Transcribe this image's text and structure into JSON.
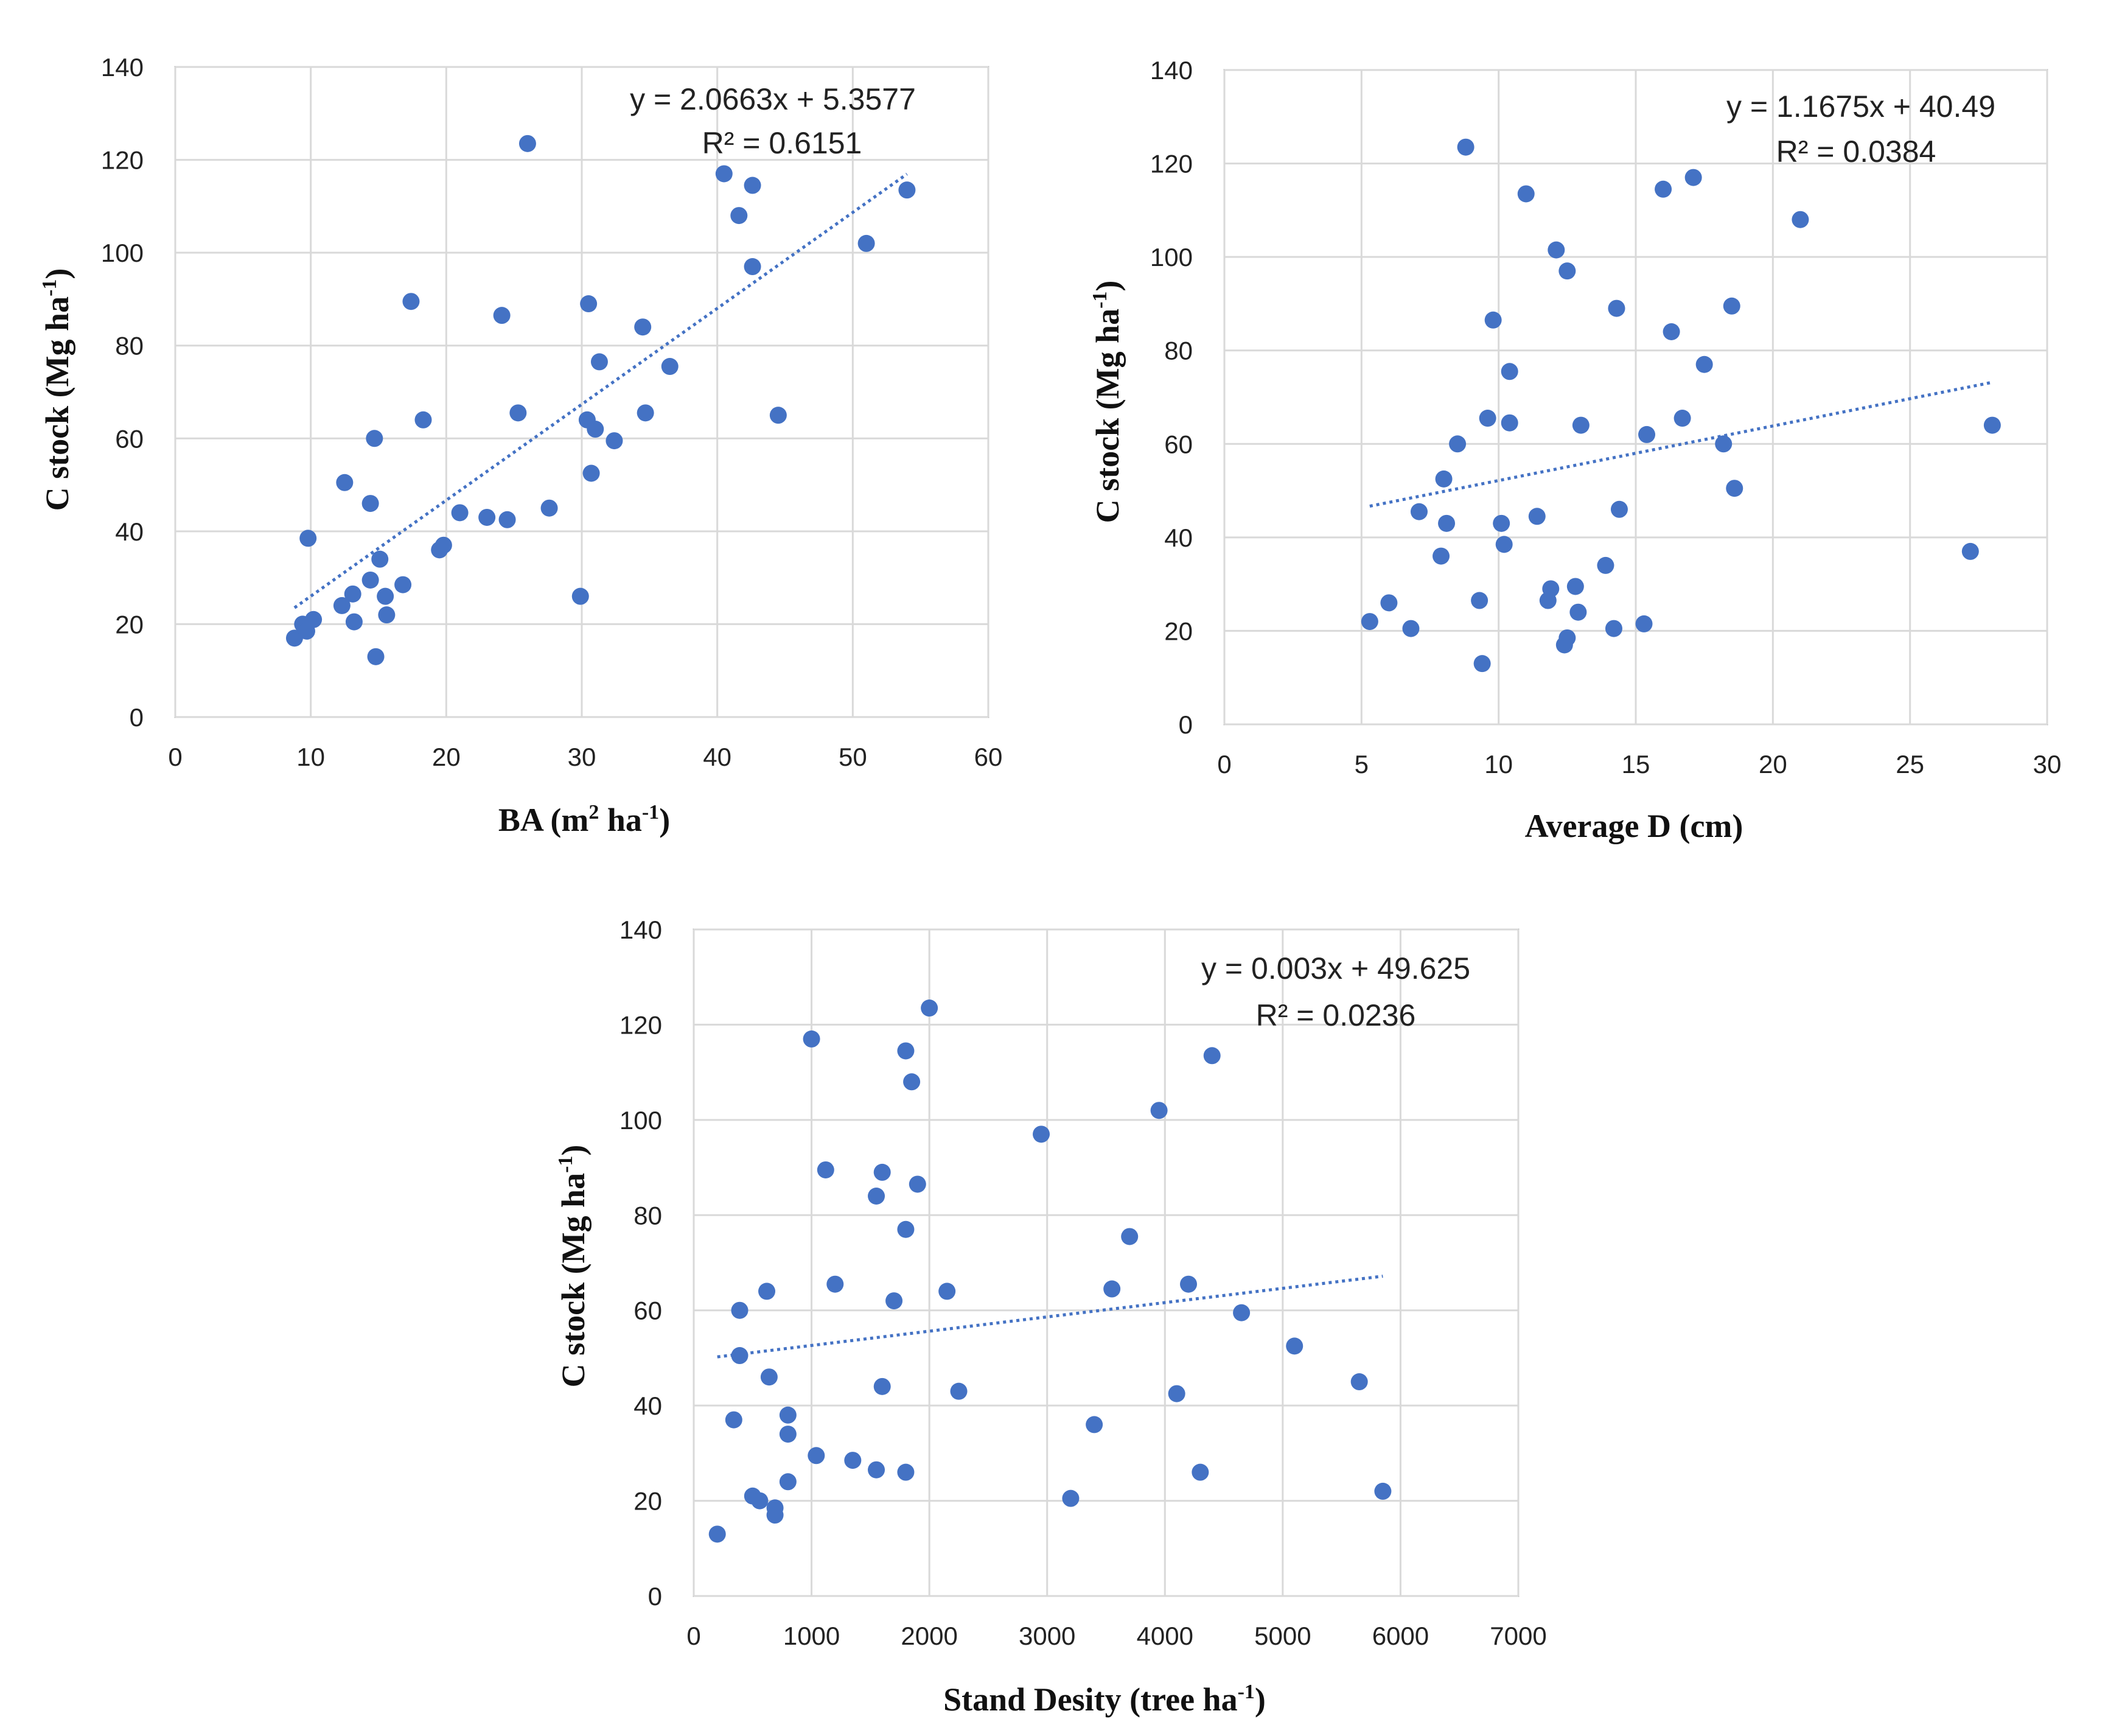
{
  "colors": {
    "point": "#4472C4",
    "trend": "#4472C4",
    "grid": "#D9D9D9",
    "frame": "#BFBFBF",
    "text": "#222222"
  },
  "chart_data": [
    {
      "type": "scatter",
      "xlim": [
        0,
        60
      ],
      "xticks": [
        0,
        10,
        20,
        30,
        40,
        50,
        60
      ],
      "ylim": [
        0,
        140
      ],
      "yticks": [
        0,
        20,
        40,
        60,
        80,
        100,
        120,
        140
      ],
      "xlabel": {
        "main": "BA (m",
        "sup1": "2",
        "mid": " ha",
        "sup2": "-1",
        "end": ")"
      },
      "ylabel": {
        "main": "C  stock (Mg ha",
        "sup": "-1",
        "end": ")"
      },
      "equation": "y = 2.0663x + 5.3577",
      "r2": "R² = 0.6151",
      "trend": {
        "slope": 2.0663,
        "intercept": 5.3577,
        "xrange": [
          8.8,
          54
        ]
      },
      "points": [
        [
          8.8,
          17
        ],
        [
          9.4,
          20
        ],
        [
          9.7,
          18.5
        ],
        [
          10.2,
          21
        ],
        [
          9.8,
          38.5
        ],
        [
          12.3,
          24
        ],
        [
          13.1,
          26.5
        ],
        [
          12.5,
          50.5
        ],
        [
          13.2,
          20.5
        ],
        [
          14.4,
          29.5
        ],
        [
          14.4,
          46
        ],
        [
          14.7,
          60
        ],
        [
          14.8,
          13
        ],
        [
          15.1,
          34
        ],
        [
          15.5,
          26
        ],
        [
          15.6,
          22
        ],
        [
          16.8,
          28.5
        ],
        [
          17.4,
          89.5
        ],
        [
          18.3,
          64
        ],
        [
          19.5,
          36
        ],
        [
          19.8,
          37
        ],
        [
          21,
          44
        ],
        [
          23,
          43
        ],
        [
          24.1,
          86.5
        ],
        [
          24.5,
          42.5
        ],
        [
          25.3,
          65.5
        ],
        [
          26,
          123.5
        ],
        [
          27.6,
          45
        ],
        [
          29.9,
          26
        ],
        [
          30.4,
          64
        ],
        [
          30.5,
          89
        ],
        [
          30.7,
          52.5
        ],
        [
          31,
          62
        ],
        [
          31.3,
          76.5
        ],
        [
          32.4,
          59.5
        ],
        [
          34.5,
          84
        ],
        [
          34.7,
          65.5
        ],
        [
          36.5,
          75.5
        ],
        [
          40.5,
          117
        ],
        [
          41.6,
          108
        ],
        [
          42.6,
          114.5
        ],
        [
          42.6,
          97
        ],
        [
          44.5,
          65
        ],
        [
          51,
          102
        ],
        [
          54,
          113.5
        ]
      ]
    },
    {
      "type": "scatter",
      "xlim": [
        0,
        30
      ],
      "xticks": [
        0,
        5,
        10,
        15,
        20,
        25,
        30
      ],
      "ylim": [
        0,
        140
      ],
      "yticks": [
        0,
        20,
        40,
        60,
        80,
        100,
        120,
        140
      ],
      "xlabel": {
        "main": "Average D (cm)"
      },
      "ylabel": {
        "main": "C stock (Mg ha",
        "sup": "-1",
        "end": ")"
      },
      "equation": "y = 1.1675x + 40.49",
      "r2": "R² = 0.0384",
      "trend": {
        "slope": 1.1675,
        "intercept": 40.49,
        "xrange": [
          5.3,
          28
        ]
      },
      "points": [
        [
          5.3,
          22
        ],
        [
          6,
          26
        ],
        [
          6.8,
          20.5
        ],
        [
          7.1,
          45.5
        ],
        [
          7.9,
          36
        ],
        [
          8,
          52.5
        ],
        [
          8.1,
          43
        ],
        [
          8.5,
          60
        ],
        [
          8.8,
          123.5
        ],
        [
          9.3,
          26.5
        ],
        [
          9.4,
          13
        ],
        [
          9.6,
          65.5
        ],
        [
          9.8,
          86.5
        ],
        [
          10.1,
          43
        ],
        [
          10.2,
          38.5
        ],
        [
          10.4,
          64.5
        ],
        [
          10.4,
          75.5
        ],
        [
          11,
          113.5
        ],
        [
          11.4,
          44.5
        ],
        [
          11.8,
          26.5
        ],
        [
          11.9,
          29
        ],
        [
          12.1,
          101.5
        ],
        [
          12.4,
          17
        ],
        [
          12.5,
          18.5
        ],
        [
          12.5,
          97
        ],
        [
          12.8,
          29.5
        ],
        [
          12.9,
          24
        ],
        [
          13,
          64
        ],
        [
          13.9,
          34
        ],
        [
          14.2,
          20.5
        ],
        [
          14.3,
          89
        ],
        [
          14.4,
          46
        ],
        [
          15.3,
          21.5
        ],
        [
          15.4,
          62
        ],
        [
          16,
          114.5
        ],
        [
          16.3,
          84
        ],
        [
          16.7,
          65.5
        ],
        [
          17.1,
          117
        ],
        [
          17.5,
          77
        ],
        [
          18.2,
          60
        ],
        [
          18.5,
          89.5
        ],
        [
          18.6,
          50.5
        ],
        [
          21,
          108
        ],
        [
          27.2,
          37
        ],
        [
          28,
          64
        ]
      ]
    },
    {
      "type": "scatter",
      "xlim": [
        0,
        7000
      ],
      "xticks": [
        0,
        1000,
        2000,
        3000,
        4000,
        5000,
        6000,
        7000
      ],
      "ylim": [
        0,
        140
      ],
      "yticks": [
        0,
        20,
        40,
        60,
        80,
        100,
        120,
        140
      ],
      "xlabel": {
        "main": "Stand Desity (tree ha",
        "sup": "-1",
        "end": ")"
      },
      "ylabel": {
        "main": "C stock (Mg ha",
        "sup": "-1",
        "end": ")"
      },
      "equation": "y = 0.003x + 49.625",
      "r2": "R² = 0.0236",
      "trend": {
        "slope": 0.003,
        "intercept": 49.625,
        "xrange": [
          200,
          5850
        ]
      },
      "points": [
        [
          200,
          13
        ],
        [
          340,
          37
        ],
        [
          390,
          60
        ],
        [
          390,
          50.5
        ],
        [
          500,
          21
        ],
        [
          560,
          20
        ],
        [
          620,
          64
        ],
        [
          640,
          46
        ],
        [
          690,
          18.5
        ],
        [
          690,
          17
        ],
        [
          800,
          38
        ],
        [
          800,
          34
        ],
        [
          800,
          24
        ],
        [
          1000,
          117
        ],
        [
          1040,
          29.5
        ],
        [
          1120,
          89.5
        ],
        [
          1200,
          65.5
        ],
        [
          1350,
          28.5
        ],
        [
          1550,
          26.5
        ],
        [
          1550,
          84
        ],
        [
          1600,
          44
        ],
        [
          1600,
          89
        ],
        [
          1700,
          62
        ],
        [
          1800,
          114.5
        ],
        [
          1800,
          77
        ],
        [
          1800,
          26
        ],
        [
          1850,
          108
        ],
        [
          1900,
          86.5
        ],
        [
          2000,
          123.5
        ],
        [
          2150,
          64
        ],
        [
          2250,
          43
        ],
        [
          2950,
          97
        ],
        [
          3200,
          20.5
        ],
        [
          3400,
          36
        ],
        [
          3550,
          64.5
        ],
        [
          3700,
          75.5
        ],
        [
          3950,
          102
        ],
        [
          4100,
          42.5
        ],
        [
          4200,
          65.5
        ],
        [
          4300,
          26
        ],
        [
          4400,
          113.5
        ],
        [
          4650,
          59.5
        ],
        [
          5100,
          52.5
        ],
        [
          5650,
          45
        ],
        [
          5850,
          22
        ]
      ]
    }
  ]
}
